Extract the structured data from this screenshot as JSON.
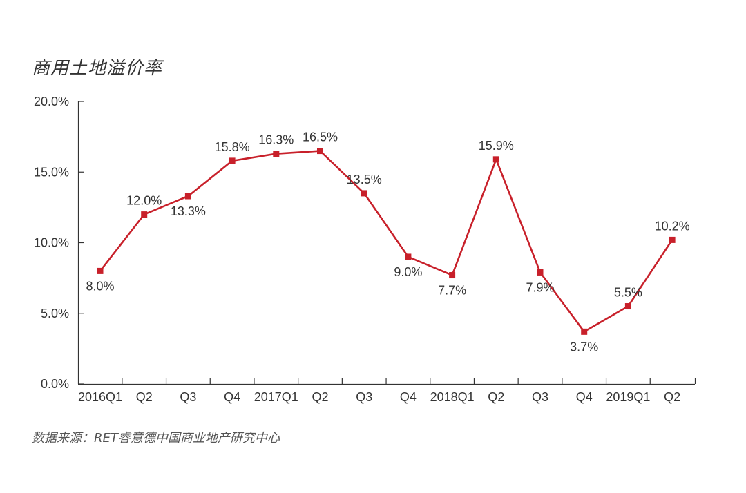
{
  "chart_data": {
    "type": "line",
    "title": "商用土地溢价率",
    "source": "数据来源：RET睿意德中国商业地产研究中心",
    "categories": [
      "2016Q1",
      "Q2",
      "Q3",
      "Q4",
      "2017Q1",
      "Q2",
      "Q3",
      "Q4",
      "2018Q1",
      "Q2",
      "Q3",
      "Q4",
      "2019Q1",
      "Q2"
    ],
    "series": [
      {
        "values": [
          8.0,
          12.0,
          13.3,
          15.8,
          16.3,
          16.5,
          13.5,
          9.0,
          7.7,
          15.9,
          7.9,
          3.7,
          5.5,
          10.2
        ],
        "data_labels": [
          "8.0%",
          "12.0%",
          "13.3%",
          "15.8%",
          "16.3%",
          "16.5%",
          "13.5%",
          "9.0%",
          "7.7%",
          "15.9%",
          "7.9%",
          "3.7%",
          "5.5%",
          "10.2%"
        ]
      }
    ],
    "ylim": [
      0,
      20
    ],
    "yticks": [
      "0.0%",
      "5.0%",
      "10.0%",
      "15.0%",
      "20.0%"
    ],
    "ytick_values": [
      0,
      5,
      10,
      15,
      20
    ],
    "grid": false,
    "line_color": "#c8202a",
    "axis_color": "#333333"
  }
}
